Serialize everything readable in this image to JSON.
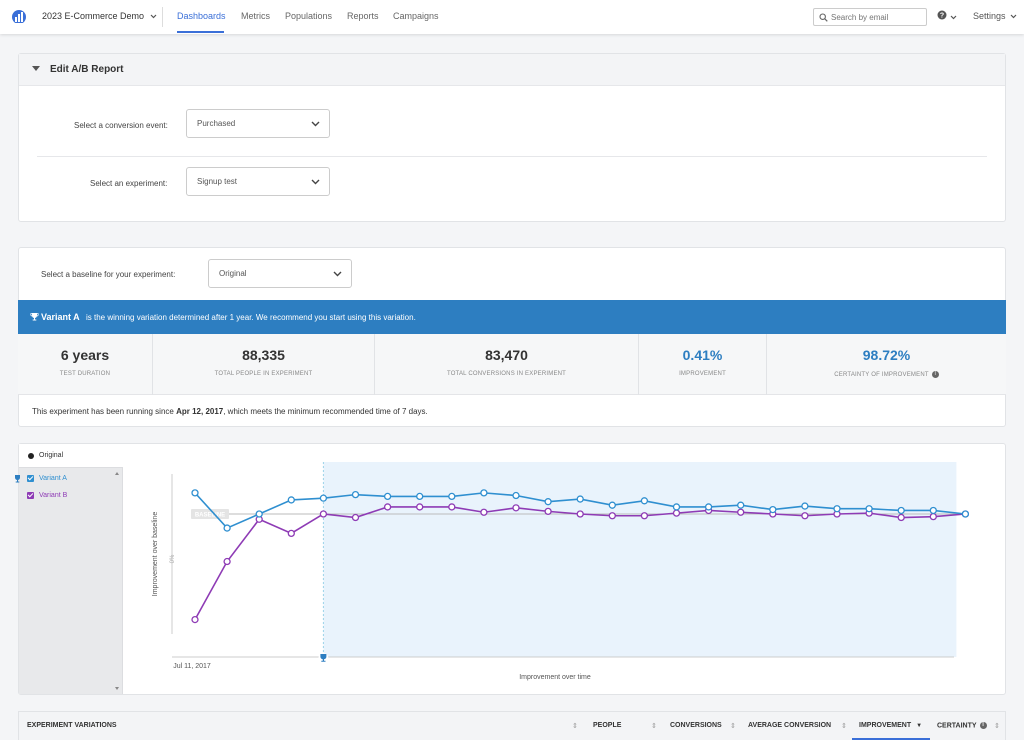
{
  "topbar": {
    "project": "2023 E-Commerce Demo",
    "nav": [
      "Dashboards",
      "Metrics",
      "Populations",
      "Reports",
      "Campaigns"
    ],
    "active_nav": "Dashboards",
    "search_placeholder": "Search by email",
    "help_icon": "question-icon",
    "settings": "Settings"
  },
  "edit_report": {
    "title": "Edit A/B Report",
    "conversion_label": "Select a conversion event:",
    "conversion_value": "Purchased",
    "experiment_label": "Select an experiment:",
    "experiment_value": "Signup test"
  },
  "results": {
    "baseline_label": "Select a baseline for your experiment:",
    "baseline_value": "Original",
    "banner_strong": "Variant A",
    "banner_msg": "is the winning variation determined after 1 year. We recommend you start using this variation.",
    "banner_color": "#2d7ec1",
    "stats": [
      {
        "value": "6 years",
        "caption": "Test Duration"
      },
      {
        "value": "88,335",
        "caption": "Total People in Experiment"
      },
      {
        "value": "83,470",
        "caption": "Total Conversions in Experiment"
      },
      {
        "value": "0.41%",
        "caption": "Improvement"
      },
      {
        "value": "98.72%",
        "caption": "Certainty of Improvement"
      }
    ],
    "running_prefix": "This experiment has been running since ",
    "running_date": "Apr 12, 2017",
    "running_suffix": ", which meets the minimum recommended time of 7 days."
  },
  "legend": {
    "original": "Original",
    "variants": [
      {
        "name": "Variant A",
        "color": "#2f8fd0"
      },
      {
        "name": "Variant B",
        "color": "#8e3bb5"
      }
    ]
  },
  "chart_data": {
    "type": "line",
    "ylabel": "Improvement over baseline",
    "xlabel": "Improvement over time",
    "x_start_label": "Jul 11, 2017",
    "baseline_label": "BASELINE",
    "y_tick_label": "0%",
    "series": [
      {
        "name": "Variant A",
        "color": "#2f8fd0",
        "values": [
          1.2,
          -0.8,
          0.0,
          0.8,
          0.9,
          1.1,
          1.0,
          1.0,
          1.0,
          1.2,
          1.05,
          0.7,
          0.85,
          0.5,
          0.75,
          0.4,
          0.4,
          0.5,
          0.25,
          0.45,
          0.3,
          0.3,
          0.2,
          0.2,
          0.0
        ]
      },
      {
        "name": "Variant B",
        "color": "#8e3bb5",
        "values": [
          -6.0,
          -2.7,
          -0.3,
          -1.1,
          0.0,
          -0.2,
          0.4,
          0.4,
          0.4,
          0.1,
          0.35,
          0.15,
          0.0,
          -0.1,
          -0.1,
          0.05,
          0.2,
          0.1,
          0.0,
          -0.1,
          0.0,
          0.05,
          -0.2,
          -0.15,
          0.0
        ]
      }
    ],
    "winner_start_index": 4
  },
  "table": {
    "columns": [
      "Experiment Variations",
      "People",
      "Conversions",
      "Average Conversion",
      "Improvement",
      "Certainty"
    ],
    "active_sort": "Improvement"
  }
}
